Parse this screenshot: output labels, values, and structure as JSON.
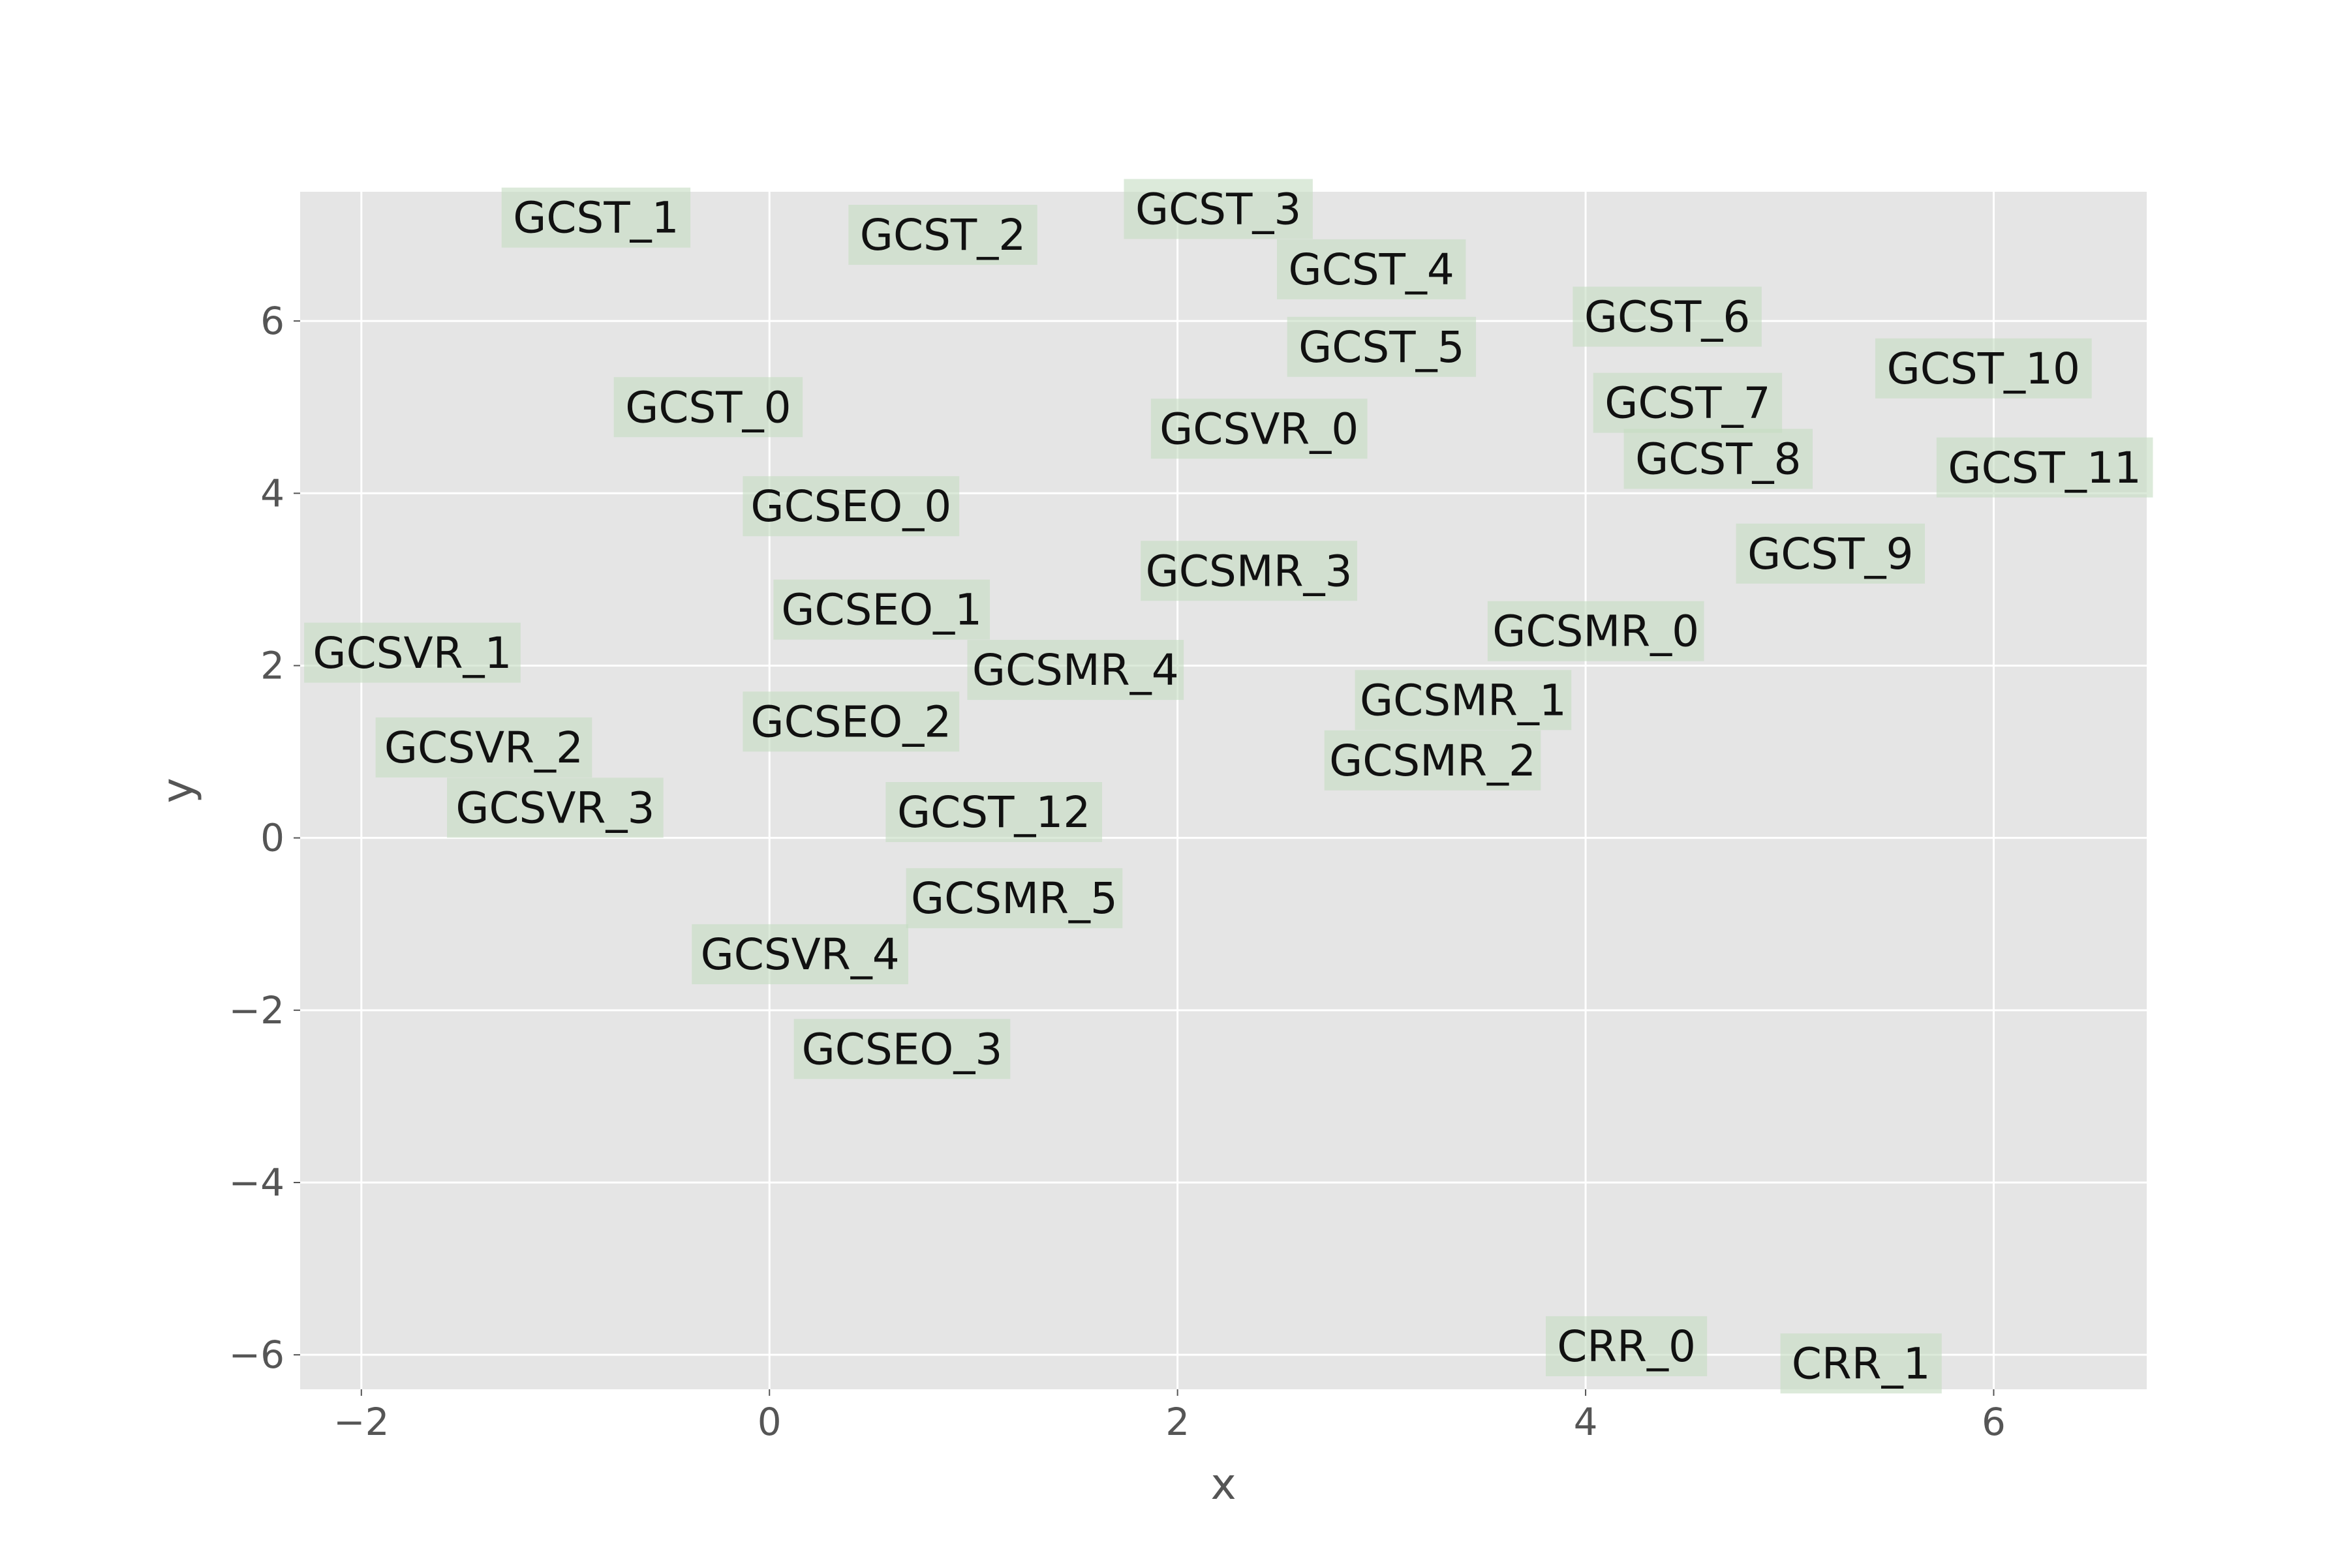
{
  "chart_data": {
    "type": "scatter",
    "title": "",
    "xlabel": "x",
    "ylabel": "y",
    "xlim": [
      -2.3,
      6.75
    ],
    "ylim": [
      -6.4,
      7.5
    ],
    "x_ticks": [
      -2,
      0,
      2,
      4,
      6
    ],
    "y_ticks": [
      -6,
      -4,
      -2,
      0,
      2,
      4,
      6
    ],
    "x_tick_labels": [
      "−2",
      "0",
      "2",
      "4",
      "6"
    ],
    "y_tick_labels": [
      "−6",
      "−4",
      "−2",
      "0",
      "2",
      "4",
      "6"
    ],
    "grid": true,
    "colors": {
      "plot_background": "#e5e5e5",
      "grid": "#ffffff",
      "label_box": "#c5dcc1",
      "text": "#111111",
      "tick_text": "#555555"
    },
    "points": [
      {
        "label": "GCST_0",
        "x": -0.3,
        "y": 5.0
      },
      {
        "label": "GCST_1",
        "x": -0.85,
        "y": 7.2
      },
      {
        "label": "GCST_2",
        "x": 0.85,
        "y": 7.0
      },
      {
        "label": "GCST_3",
        "x": 2.2,
        "y": 7.3
      },
      {
        "label": "GCST_4",
        "x": 2.95,
        "y": 6.6
      },
      {
        "label": "GCST_5",
        "x": 3.0,
        "y": 5.7
      },
      {
        "label": "GCST_6",
        "x": 4.4,
        "y": 6.05
      },
      {
        "label": "GCST_7",
        "x": 4.5,
        "y": 5.05
      },
      {
        "label": "GCST_8",
        "x": 4.65,
        "y": 4.4
      },
      {
        "label": "GCST_9",
        "x": 5.2,
        "y": 3.3
      },
      {
        "label": "GCST_10",
        "x": 5.95,
        "y": 5.45
      },
      {
        "label": "GCST_11",
        "x": 6.25,
        "y": 4.3
      },
      {
        "label": "GCST_12",
        "x": 1.1,
        "y": 0.3
      },
      {
        "label": "GCSVR_0",
        "x": 2.4,
        "y": 4.75
      },
      {
        "label": "GCSVR_1",
        "x": -1.75,
        "y": 2.15
      },
      {
        "label": "GCSVR_2",
        "x": -1.4,
        "y": 1.05
      },
      {
        "label": "GCSVR_3",
        "x": -1.05,
        "y": 0.35
      },
      {
        "label": "GCSVR_4",
        "x": 0.15,
        "y": -1.35
      },
      {
        "label": "GCSEO_0",
        "x": 0.4,
        "y": 3.85
      },
      {
        "label": "GCSEO_1",
        "x": 0.55,
        "y": 2.65
      },
      {
        "label": "GCSEO_2",
        "x": 0.4,
        "y": 1.35
      },
      {
        "label": "GCSEO_3",
        "x": 0.65,
        "y": -2.45
      },
      {
        "label": "GCSMR_0",
        "x": 4.05,
        "y": 2.4
      },
      {
        "label": "GCSMR_1",
        "x": 3.4,
        "y": 1.6
      },
      {
        "label": "GCSMR_2",
        "x": 3.25,
        "y": 0.9
      },
      {
        "label": "GCSMR_3",
        "x": 2.35,
        "y": 3.1
      },
      {
        "label": "GCSMR_4",
        "x": 1.5,
        "y": 1.95
      },
      {
        "label": "GCSMR_5",
        "x": 1.2,
        "y": -0.7
      },
      {
        "label": "CRR_0",
        "x": 4.2,
        "y": -5.9
      },
      {
        "label": "CRR_1",
        "x": 5.35,
        "y": -6.1
      }
    ]
  }
}
